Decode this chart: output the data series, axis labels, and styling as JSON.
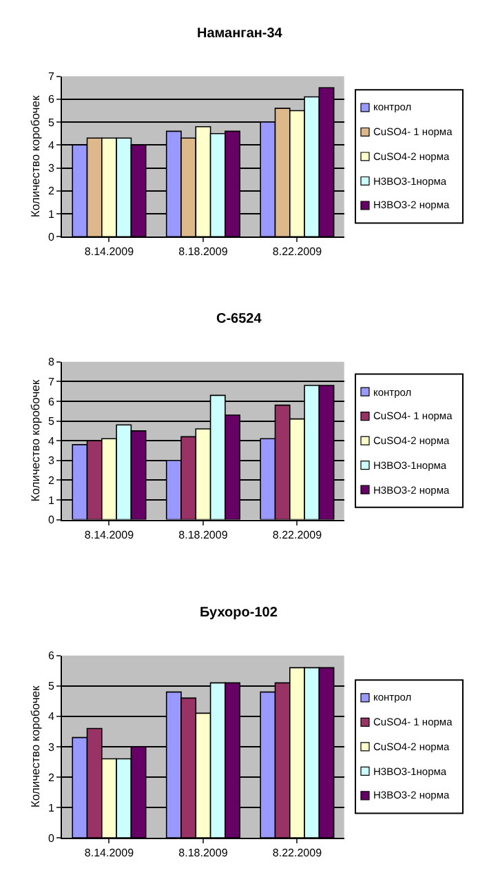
{
  "chart_data": [
    {
      "type": "bar",
      "title": "Наманган-34",
      "ylabel": "Количество коробочек",
      "categories": [
        "8.14.2009",
        "8.18.2009",
        "8.22.2009"
      ],
      "ylim": [
        0,
        7
      ],
      "yticks": [
        0,
        1,
        2,
        3,
        4,
        5,
        6,
        7
      ],
      "grid": "y",
      "legend": "right",
      "series": [
        {
          "name": "контрол",
          "color": "#9999ff",
          "values": [
            4,
            4.6,
            5
          ]
        },
        {
          "name": "CuSO4- 1 норма",
          "color": "#dcb88a",
          "values": [
            4.3,
            4.3,
            5.6
          ]
        },
        {
          "name": "CuSO4-2 норма",
          "color": "#ffffcc",
          "values": [
            4.3,
            4.8,
            5.5
          ]
        },
        {
          "name": "H3BO3-1норма",
          "color": "#ccffff",
          "values": [
            4.3,
            4.5,
            6.1
          ]
        },
        {
          "name": "H3BO3-2 норма",
          "color": "#660066",
          "values": [
            4,
            4.6,
            6.5
          ]
        }
      ]
    },
    {
      "type": "bar",
      "title": "С-6524",
      "ylabel": "Количество коробочек",
      "categories": [
        "8.14.2009",
        "8.18.2009",
        "8.22.2009"
      ],
      "ylim": [
        0,
        8
      ],
      "yticks": [
        0,
        1,
        2,
        3,
        4,
        5,
        6,
        7,
        8
      ],
      "grid": "y",
      "legend": "right",
      "series": [
        {
          "name": "контрол",
          "color": "#9999ff",
          "values": [
            3.8,
            3,
            4.1
          ]
        },
        {
          "name": "CuSO4- 1 норма",
          "color": "#993366",
          "values": [
            4,
            4.2,
            5.8
          ]
        },
        {
          "name": "CuSO4-2 норма",
          "color": "#ffffcc",
          "values": [
            4.1,
            4.6,
            5.1
          ]
        },
        {
          "name": "H3BO3-1норма",
          "color": "#ccffff",
          "values": [
            4.8,
            6.3,
            6.8
          ]
        },
        {
          "name": "H3BO3-2 норма",
          "color": "#660066",
          "values": [
            4.5,
            5.3,
            6.8
          ]
        }
      ]
    },
    {
      "type": "bar",
      "title": "Бухоро-102",
      "ylabel": "Количество коробочек",
      "categories": [
        "8.14.2009",
        "8.18.2009",
        "8.22.2009"
      ],
      "ylim": [
        0,
        6
      ],
      "yticks": [
        0,
        1,
        2,
        3,
        4,
        5,
        6
      ],
      "grid": "y",
      "legend": "right",
      "series": [
        {
          "name": "контрол",
          "color": "#9999ff",
          "values": [
            3.3,
            4.8,
            4.8
          ]
        },
        {
          "name": "CuSO4- 1 норма",
          "color": "#993366",
          "values": [
            3.6,
            4.6,
            5.1
          ]
        },
        {
          "name": "CuSO4-2 норма",
          "color": "#ffffcc",
          "values": [
            2.6,
            4.1,
            5.6
          ]
        },
        {
          "name": "H3BO3-1норма",
          "color": "#ccffff",
          "values": [
            2.6,
            5.1,
            5.6
          ]
        },
        {
          "name": "H3BO3-2 норма",
          "color": "#660066",
          "values": [
            3,
            5.1,
            5.6
          ]
        }
      ]
    }
  ]
}
